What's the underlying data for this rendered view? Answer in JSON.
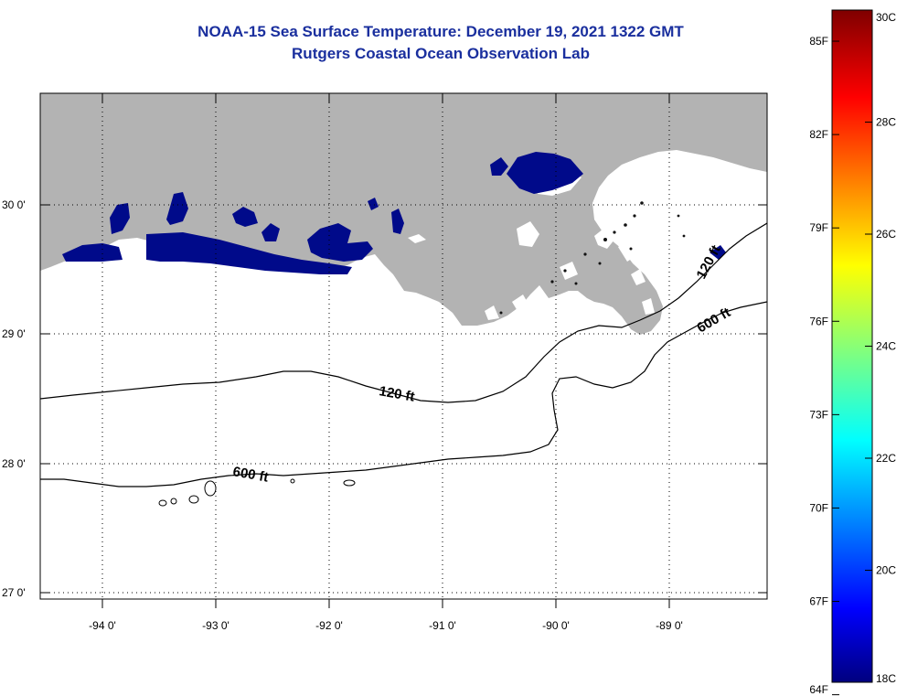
{
  "title": "NOAA-15 Sea Surface Temperature:  December 19, 2021 1322 GMT",
  "subtitle": "Rutgers Coastal Ocean Observation Lab",
  "axes": {
    "lat_labels": [
      "30 0'",
      "29 0'",
      "28 0'",
      "27 0'"
    ],
    "lon_labels": [
      "-94 0'",
      "-93 0'",
      "-92 0'",
      "-91 0'",
      "-90 0'",
      "-89 0'"
    ]
  },
  "contours": {
    "label_120_west": "120 ft",
    "label_120_east": "120 ft",
    "label_600_west": "600 ft",
    "label_600_east": "600 ft"
  },
  "colorbar": {
    "fahrenheit": [
      "85F",
      "82F",
      "79F",
      "76F",
      "73F",
      "70F",
      "67F",
      "64F"
    ],
    "celsius": [
      "30C",
      "28C",
      "26C",
      "24C",
      "22C",
      "20C",
      "18C"
    ],
    "min_c": 18,
    "max_c": 30
  },
  "colors": {
    "land": "#b3b3b3",
    "cold_water": "#000a8a",
    "title": "#1a2f9e"
  }
}
